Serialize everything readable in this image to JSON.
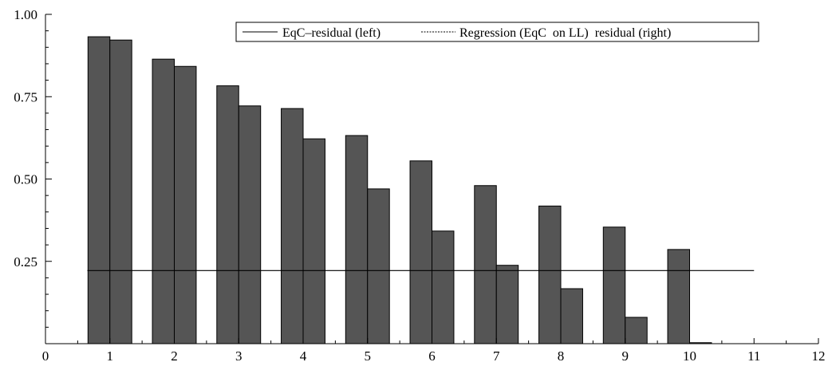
{
  "chart_data": {
    "type": "bar",
    "x_ticks": [
      "0",
      "1",
      "2",
      "3",
      "4",
      "5",
      "6",
      "7",
      "8",
      "9",
      "10",
      "11",
      "12"
    ],
    "y_ticks": [
      "0.25",
      "0.50",
      "0.75",
      "1.00"
    ],
    "xlim": [
      0,
      12
    ],
    "ylim": [
      0,
      1.0
    ],
    "series": [
      {
        "name": "EqC–residual (left)",
        "x": [
          1,
          2,
          3,
          4,
          5,
          6,
          7,
          8,
          9,
          10
        ],
        "values": [
          0.932,
          0.864,
          0.783,
          0.714,
          0.632,
          0.555,
          0.48,
          0.418,
          0.354,
          0.286
        ]
      },
      {
        "name": "Regression (EqC  on LL)  residual (right)",
        "x": [
          1,
          2,
          3,
          4,
          5,
          6,
          7,
          8,
          9,
          10
        ],
        "values": [
          0.922,
          0.842,
          0.722,
          0.622,
          0.47,
          0.342,
          0.238,
          0.167,
          0.08,
          0.003
        ]
      }
    ],
    "reference_line": {
      "y": 0.222,
      "x_range": [
        0.65,
        11
      ]
    },
    "legend_position": "top-right",
    "bar_color": "#555555",
    "grid": false
  }
}
